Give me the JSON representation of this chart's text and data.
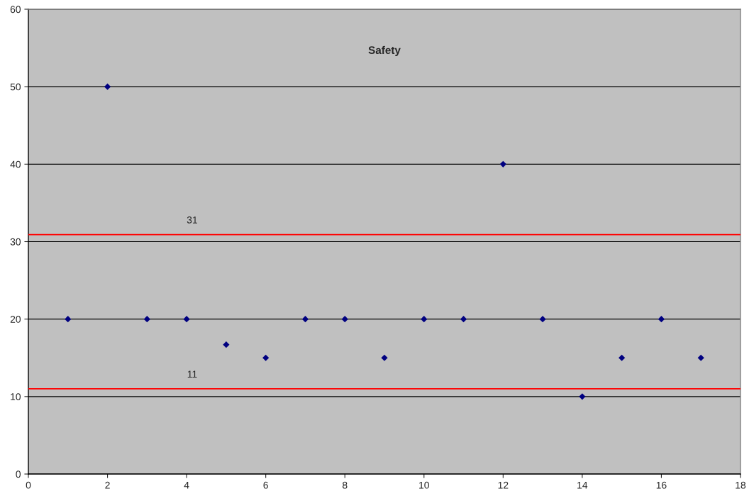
{
  "chart_data": {
    "type": "scatter",
    "title": "Safety",
    "x": [
      1,
      2,
      3,
      4,
      5,
      6,
      7,
      8,
      9,
      10,
      11,
      12,
      13,
      14,
      15,
      16,
      17
    ],
    "series": [
      {
        "color": "#000080",
        "values": [
          20,
          50,
          20,
          20,
          16.7,
          15,
          20,
          20,
          15,
          20,
          20,
          40,
          20,
          10,
          15,
          20,
          15
        ]
      }
    ],
    "marker": "diamond",
    "xlim": [
      0,
      18
    ],
    "xticks": [
      0,
      2,
      4,
      6,
      8,
      10,
      12,
      14,
      16,
      18
    ],
    "ylim": [
      0,
      60
    ],
    "yticks": [
      0,
      10,
      20,
      30,
      40,
      50,
      60
    ],
    "grid": "y",
    "ref_lines": [
      {
        "axis": "y",
        "value": 30.9,
        "label": "31",
        "color": "#ff0000"
      },
      {
        "axis": "y",
        "value": 11,
        "label": "11",
        "color": "#ff0000"
      }
    ]
  }
}
